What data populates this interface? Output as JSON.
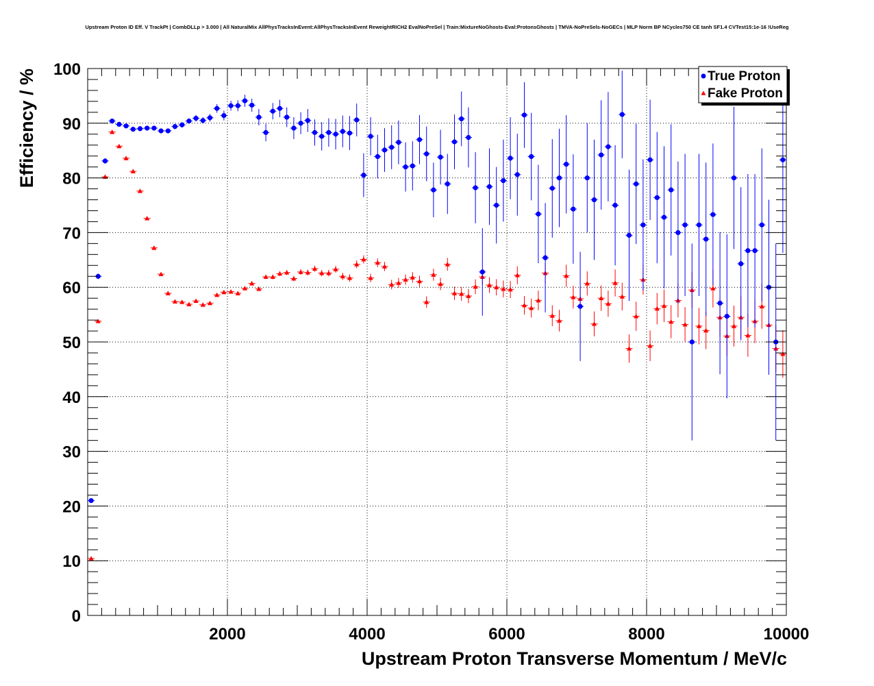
{
  "chart_data": {
    "type": "scatter",
    "title": "Upstream Proton ID Eff. V TrackPt | CombDLLp > 3.000 | All NaturalMix AllPhysTracksInEvent:AllPhysTracksInEvent ReweightRICH2 EvalNoPreSel | Train:MixtureNoGhosts-Eval:ProtonsGhosts | TMVA-NoPreSels-NoGECs | MLP Norm BP NCycles750 CE tanh SF1.4 CVTest15:1e-16 !UseReg",
    "xlabel": "Upstream Proton Transverse Momentum / MeV/c",
    "ylabel": "Efficiency / %",
    "xlim": [
      0,
      10000
    ],
    "ylim": [
      0,
      100
    ],
    "x_ticks": [
      2000,
      4000,
      6000,
      8000,
      10000
    ],
    "x_tick_labels": [
      "2000",
      "4000",
      "6000",
      "8000",
      "10000"
    ],
    "y_ticks": [
      0,
      10,
      20,
      30,
      40,
      50,
      60,
      70,
      80,
      90,
      100
    ],
    "y_tick_labels": [
      "0",
      "10",
      "20",
      "30",
      "40",
      "50",
      "60",
      "70",
      "80",
      "90",
      "100"
    ],
    "grid": true,
    "legend_position": "top-right",
    "series": [
      {
        "name": "True Proton",
        "color": "#0000ff",
        "marker": "circle",
        "x": [
          50,
          150,
          250,
          350,
          450,
          550,
          650,
          750,
          850,
          950,
          1050,
          1150,
          1250,
          1350,
          1450,
          1550,
          1650,
          1750,
          1850,
          1950,
          2050,
          2150,
          2250,
          2350,
          2450,
          2550,
          2650,
          2750,
          2850,
          2950,
          3050,
          3150,
          3250,
          3350,
          3450,
          3550,
          3650,
          3750,
          3850,
          3950,
          4050,
          4150,
          4250,
          4350,
          4450,
          4550,
          4650,
          4750,
          4850,
          4950,
          5050,
          5150,
          5250,
          5350,
          5450,
          5550,
          5650,
          5750,
          5850,
          5950,
          6050,
          6150,
          6250,
          6350,
          6450,
          6550,
          6650,
          6750,
          6850,
          6950,
          7050,
          7150,
          7250,
          7350,
          7450,
          7550,
          7650,
          7750,
          7850,
          7950,
          8050,
          8150,
          8250,
          8350,
          8450,
          8550,
          8650,
          8750,
          8850,
          8950,
          9050,
          9150,
          9250,
          9350,
          9450,
          9550,
          9650,
          9750,
          9850,
          9950
        ],
        "y": [
          21.0,
          62.0,
          83.1,
          90.4,
          89.8,
          89.5,
          88.9,
          89.0,
          89.1,
          89.1,
          88.6,
          88.6,
          89.4,
          89.7,
          90.4,
          90.9,
          90.5,
          91.0,
          92.7,
          91.4,
          93.2,
          93.2,
          94.1,
          93.3,
          91.1,
          88.3,
          92.2,
          92.7,
          91.1,
          89.1,
          90.0,
          90.5,
          88.3,
          87.6,
          88.3,
          88.0,
          88.5,
          88.2,
          90.6,
          80.5,
          87.6,
          83.9,
          85.1,
          85.6,
          86.5,
          82.0,
          82.2,
          87.0,
          84.4,
          77.8,
          83.8,
          78.9,
          86.6,
          90.8,
          87.4,
          78.2,
          62.8,
          78.4,
          75.0,
          79.5,
          83.6,
          80.6,
          91.5,
          83.9,
          73.4,
          65.4,
          78.1,
          80.0,
          82.5,
          74.3,
          56.5,
          80.0,
          76.0,
          84.2,
          85.7,
          75.0,
          91.6,
          69.5,
          78.9,
          71.4,
          83.3,
          76.4,
          72.8,
          77.8,
          70.0,
          71.4,
          50.0,
          71.4,
          68.8,
          73.3,
          57.1,
          54.7,
          80.0,
          64.3,
          66.7,
          66.7,
          71.4,
          60.0,
          50.0,
          83.3
        ],
        "yerr": [
          0.4,
          0.5,
          0.5,
          0.4,
          0.4,
          0.4,
          0.4,
          0.4,
          0.4,
          0.4,
          0.4,
          0.4,
          0.5,
          0.5,
          0.5,
          0.6,
          0.6,
          0.7,
          0.8,
          0.9,
          0.9,
          1.0,
          1.1,
          1.2,
          1.5,
          1.6,
          1.5,
          1.6,
          1.8,
          2.0,
          2.0,
          2.1,
          2.4,
          2.6,
          2.6,
          2.8,
          2.9,
          3.1,
          3.0,
          4.0,
          3.5,
          4.0,
          4.0,
          4.0,
          4.0,
          4.5,
          4.5,
          4.5,
          5.0,
          5.0,
          5.0,
          5.5,
          5.0,
          5.0,
          5.5,
          6.5,
          8.0,
          7.0,
          7.0,
          7.5,
          7.5,
          7.5,
          6.0,
          8.0,
          9.0,
          10.0,
          9.0,
          9.0,
          9.0,
          10.0,
          10.0,
          10.0,
          11.0,
          10.0,
          10.0,
          11.0,
          8.0,
          12.0,
          11.0,
          12.0,
          11.0,
          12.0,
          13.0,
          12.0,
          13.0,
          13.0,
          18.0,
          13.0,
          14.0,
          13.0,
          13.0,
          15.0,
          13.0,
          14.0,
          14.0,
          14.0,
          14.0,
          16.0,
          18.0,
          17.0
        ]
      },
      {
        "name": "Fake Proton",
        "color": "#ff0000",
        "marker": "triangle",
        "x": [
          50,
          150,
          250,
          350,
          450,
          550,
          650,
          750,
          850,
          950,
          1050,
          1150,
          1250,
          1350,
          1450,
          1550,
          1650,
          1750,
          1850,
          1950,
          2050,
          2150,
          2250,
          2350,
          2450,
          2550,
          2650,
          2750,
          2850,
          2950,
          3050,
          3150,
          3250,
          3350,
          3450,
          3550,
          3650,
          3750,
          3850,
          3950,
          4050,
          4150,
          4250,
          4350,
          4450,
          4550,
          4650,
          4750,
          4850,
          4950,
          5050,
          5150,
          5250,
          5350,
          5450,
          5550,
          5650,
          5750,
          5850,
          5950,
          6050,
          6150,
          6250,
          6350,
          6450,
          6550,
          6650,
          6750,
          6850,
          6950,
          7050,
          7150,
          7250,
          7350,
          7450,
          7550,
          7650,
          7750,
          7850,
          7950,
          8050,
          8150,
          8250,
          8350,
          8450,
          8550,
          8650,
          8750,
          8850,
          8950,
          9050,
          9150,
          9250,
          9350,
          9450,
          9550,
          9650,
          9750,
          9850,
          9950
        ],
        "y": [
          10.4,
          53.8,
          80.2,
          88.4,
          85.8,
          83.6,
          81.2,
          77.6,
          72.6,
          67.2,
          62.4,
          58.9,
          57.4,
          57.3,
          56.9,
          57.5,
          56.8,
          57.1,
          58.6,
          59.1,
          59.2,
          58.9,
          59.8,
          60.7,
          59.7,
          61.9,
          61.9,
          62.5,
          62.7,
          61.6,
          62.8,
          62.7,
          63.4,
          62.6,
          62.6,
          63.3,
          62.0,
          61.7,
          64.2,
          65.1,
          61.7,
          64.5,
          63.8,
          60.5,
          60.8,
          61.4,
          61.8,
          61.1,
          57.3,
          62.3,
          60.6,
          64.2,
          58.9,
          58.8,
          58.4,
          60.1,
          61.9,
          60.4,
          60.0,
          59.7,
          59.6,
          62.2,
          56.7,
          56.2,
          57.6,
          62.6,
          54.8,
          53.9,
          62.1,
          58.2,
          57.9,
          60.7,
          53.3,
          58.0,
          57.0,
          60.8,
          58.3,
          48.8,
          54.7,
          61.4,
          49.3,
          56.1,
          56.6,
          53.7,
          57.6,
          53.2,
          59.5,
          52.9,
          52.1,
          59.8,
          54.5,
          51.1,
          52.9,
          54.5,
          51.2,
          53.8,
          56.5,
          53.1,
          48.8,
          47.8
        ]
      }
    ]
  }
}
